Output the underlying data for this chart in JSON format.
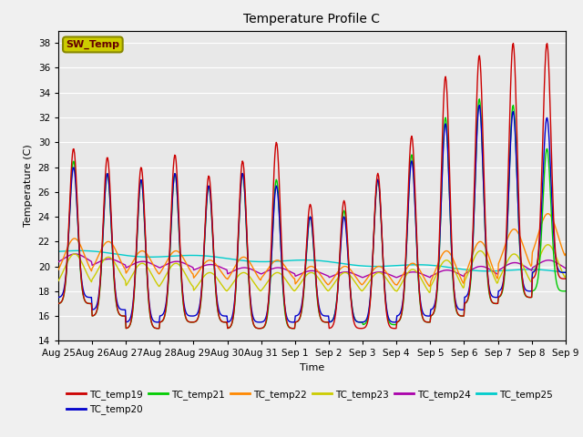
{
  "title": "Temperature Profile C",
  "xlabel": "Time",
  "ylabel": "Temperature (C)",
  "ylim": [
    14,
    39
  ],
  "yticks": [
    14,
    16,
    18,
    20,
    22,
    24,
    26,
    28,
    30,
    32,
    34,
    36,
    38
  ],
  "bg_color": "#e8e8e8",
  "series_colors": {
    "TC_temp19": "#cc0000",
    "TC_temp20": "#0000cc",
    "TC_temp21": "#00cc00",
    "TC_temp22": "#ff8800",
    "TC_temp23": "#cccc00",
    "TC_temp24": "#aa00aa",
    "TC_temp25": "#00cccc"
  },
  "sw_temp_box_color": "#cccc00",
  "sw_temp_text_color": "#660000",
  "x_labels": [
    "Aug 25",
    "Aug 26",
    "Aug 27",
    "Aug 28",
    "Aug 29",
    "Aug 30",
    "Aug 31",
    "Sep 1",
    "Sep 2",
    "Sep 3",
    "Sep 4",
    "Sep 5",
    "Sep 6",
    "Sep 7",
    "Sep 8",
    "Sep 9"
  ],
  "n_days": 15,
  "grid_color": "#ffffff",
  "line_width": 1.0,
  "fig_width": 6.4,
  "fig_height": 4.8,
  "dpi": 100
}
